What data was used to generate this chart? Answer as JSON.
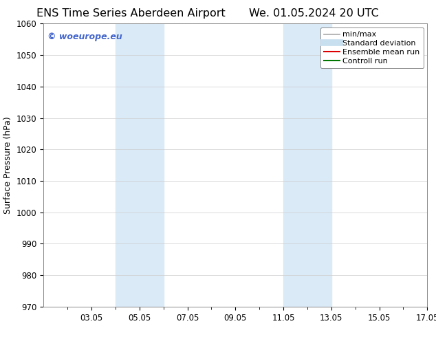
{
  "title_left": "ENS Time Series Aberdeen Airport",
  "title_right": "We. 01.05.2024 20 UTC",
  "ylabel": "Surface Pressure (hPa)",
  "ylim": [
    970,
    1060
  ],
  "yticks": [
    970,
    980,
    990,
    1000,
    1010,
    1020,
    1030,
    1040,
    1050,
    1060
  ],
  "xlim": [
    0.0,
    16.0
  ],
  "xtick_labels": [
    "03.05",
    "05.05",
    "07.05",
    "09.05",
    "11.05",
    "13.05",
    "15.05",
    "17.05"
  ],
  "xtick_positions": [
    2.0,
    4.0,
    6.0,
    8.0,
    10.0,
    12.0,
    14.0,
    16.0
  ],
  "shaded_regions": [
    {
      "xmin": 3.0,
      "xmax": 5.0,
      "color": "#daeaf7"
    },
    {
      "xmin": 9.0,
      "xmax": 11.0,
      "color": "#daeaf7"
    },
    {
      "xmin": 11.0,
      "xmax": 13.0,
      "color": "#daeaf7"
    }
  ],
  "watermark_text": "© woeurope.eu",
  "watermark_color": "#4466cc",
  "legend_items": [
    {
      "label": "min/max",
      "color": "#aaaaaa",
      "lw": 1.2,
      "style": "solid"
    },
    {
      "label": "Standard deviation",
      "color": "#c8dff0",
      "lw": 7,
      "style": "solid"
    },
    {
      "label": "Ensemble mean run",
      "color": "#dd0000",
      "lw": 1.5,
      "style": "solid"
    },
    {
      "label": "Controll run",
      "color": "#007700",
      "lw": 1.5,
      "style": "solid"
    }
  ],
  "background_color": "#ffffff",
  "grid_color": "#cccccc",
  "title_fontsize": 11.5,
  "axis_label_fontsize": 9,
  "tick_fontsize": 8.5,
  "legend_fontsize": 8,
  "watermark_fontsize": 9
}
